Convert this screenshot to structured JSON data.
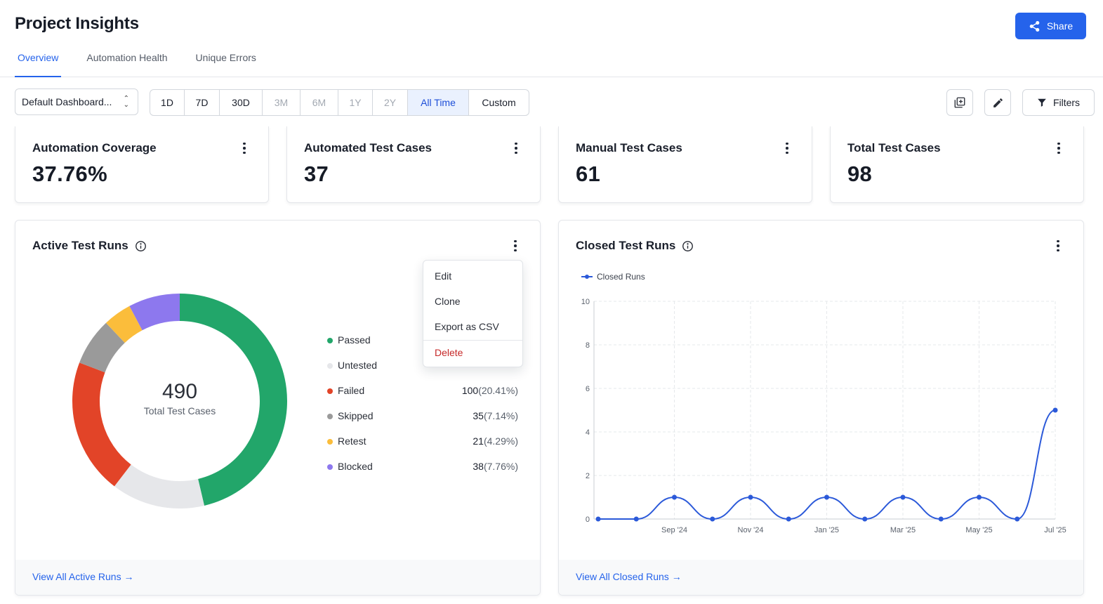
{
  "header": {
    "title": "Project Insights",
    "share_label": "Share",
    "tabs": [
      {
        "label": "Overview",
        "active": true
      },
      {
        "label": "Automation Health",
        "active": false
      },
      {
        "label": "Unique Errors",
        "active": false
      }
    ]
  },
  "toolbar": {
    "dashboard_select": "Default Dashboard...",
    "ranges": [
      {
        "label": "1D",
        "state": "enabled"
      },
      {
        "label": "7D",
        "state": "enabled"
      },
      {
        "label": "30D",
        "state": "enabled"
      },
      {
        "label": "3M",
        "state": "disabled"
      },
      {
        "label": "6M",
        "state": "disabled"
      },
      {
        "label": "1Y",
        "state": "disabled"
      },
      {
        "label": "2Y",
        "state": "disabled"
      },
      {
        "label": "All Time",
        "state": "active"
      },
      {
        "label": "Custom",
        "state": "enabled"
      }
    ],
    "filters_label": "Filters",
    "icons": [
      "add-widget-icon",
      "edit-pencil-icon",
      "filter-icon"
    ]
  },
  "stats": [
    {
      "title": "Automation Coverage",
      "value": "37.76%"
    },
    {
      "title": "Automated Test Cases",
      "value": "37"
    },
    {
      "title": "Manual Test Cases",
      "value": "61"
    },
    {
      "title": "Total Test Cases",
      "value": "98"
    }
  ],
  "active_runs": {
    "title": "Active Test Runs",
    "footer_link": "View All Active Runs →",
    "menu": [
      "Edit",
      "Clone",
      "Export as CSV",
      "Delete"
    ],
    "chart_data": {
      "type": "pie",
      "center_value": "490",
      "center_label": "Total Test Cases",
      "slices": [
        {
          "name": "Passed",
          "value": 227,
          "color": "#22a66a"
        },
        {
          "name": "Untested",
          "value": 69,
          "color": "#e6e7ea"
        },
        {
          "name": "Failed",
          "value": 100,
          "color": "#e24428"
        },
        {
          "name": "Skipped",
          "value": 35,
          "color": "#9a9a9a"
        },
        {
          "name": "Retest",
          "value": 21,
          "color": "#fbbd3b"
        },
        {
          "name": "Blocked",
          "value": 38,
          "color": "#8d78ee"
        }
      ],
      "legend": [
        {
          "name": "Passed",
          "count": "",
          "pct": "",
          "color": "#22a66a"
        },
        {
          "name": "Untested",
          "count": "",
          "pct": "",
          "color": "#e6e7ea"
        },
        {
          "name": "Failed",
          "count": "100",
          "pct": "(20.41%)",
          "color": "#e24428"
        },
        {
          "name": "Skipped",
          "count": "35",
          "pct": "(7.14%)",
          "color": "#9a9a9a"
        },
        {
          "name": "Retest",
          "count": "21",
          "pct": "(4.29%)",
          "color": "#fbbd3b"
        },
        {
          "name": "Blocked",
          "count": "38",
          "pct": "(7.76%)",
          "color": "#8d78ee"
        }
      ]
    }
  },
  "closed_runs": {
    "title": "Closed Test Runs",
    "footer_link": "View All Closed Runs →",
    "chart_data": {
      "type": "line",
      "series": [
        {
          "name": "Closed Runs",
          "color": "#2b59d9",
          "values": [
            0,
            0,
            1,
            0,
            1,
            0,
            1,
            0,
            1,
            0,
            1,
            0,
            5
          ]
        }
      ],
      "x_tick_labels": [
        "Sep '24",
        "Nov '24",
        "Jan '25",
        "Mar '25",
        "May '25",
        "Jul '25"
      ],
      "x_tick_indices": [
        2,
        4,
        6,
        8,
        10,
        12
      ],
      "y_ticks": [
        0,
        2,
        4,
        6,
        8,
        10
      ],
      "ylim": [
        0,
        10
      ],
      "grid": true,
      "legend_position": "top-left"
    }
  }
}
